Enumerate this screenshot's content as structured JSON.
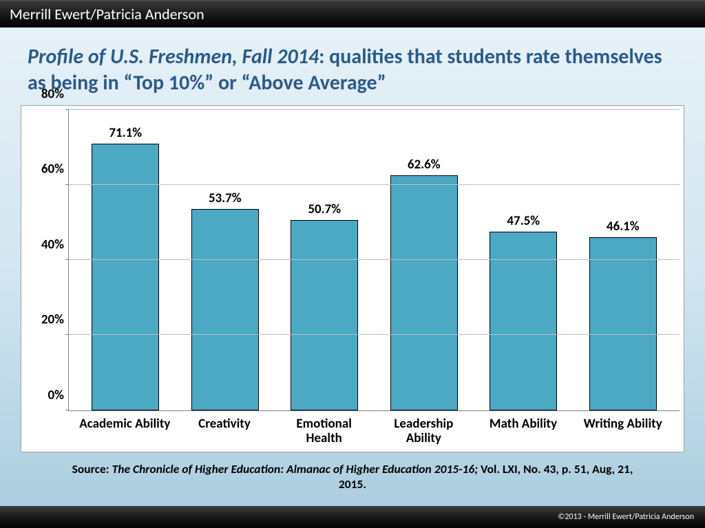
{
  "header": {
    "presenters": "Merrill Ewert/Patricia Anderson"
  },
  "title": {
    "lead": "Profile of U.S. Freshmen, Fall 2014",
    "rest": ":  qualities that students rate themselves as being in “Top 10%” or “Above Average”"
  },
  "chart": {
    "type": "bar",
    "ylim": [
      0,
      80
    ],
    "yticks": [
      0,
      20,
      40,
      60,
      80
    ],
    "ytick_labels": [
      "0%",
      "20%",
      "40%",
      "60%",
      "80%"
    ],
    "categories": [
      "Academic Ability",
      "Creativity",
      "Emotional Health",
      "Leadership Ability",
      "Math Ability",
      "Writing Ability"
    ],
    "values": [
      71.1,
      53.7,
      50.7,
      62.6,
      47.5,
      46.1
    ],
    "value_labels": [
      "71.1%",
      "53.7%",
      "50.7%",
      "62.6%",
      "47.5%",
      "46.1%"
    ],
    "bar_fill": "#4ba9c4",
    "bar_border": "#000000",
    "grid_color": "#bfbfbf",
    "axis_color": "#7a7f85",
    "plot_bg": "#ffffff",
    "label_fontsize": 19,
    "label_fontweight": 700
  },
  "source": {
    "prefix": "Source: ",
    "italic": "The Chronicle of Higher Education: Almanac of Higher Education 2015-16; ",
    "tail": "Vol. LXI, No. 43, p. 51, Aug, 21, 2015",
    "period": "."
  },
  "footer": {
    "copyright": "©2013 - Merrill Ewert/Patricia Anderson"
  }
}
